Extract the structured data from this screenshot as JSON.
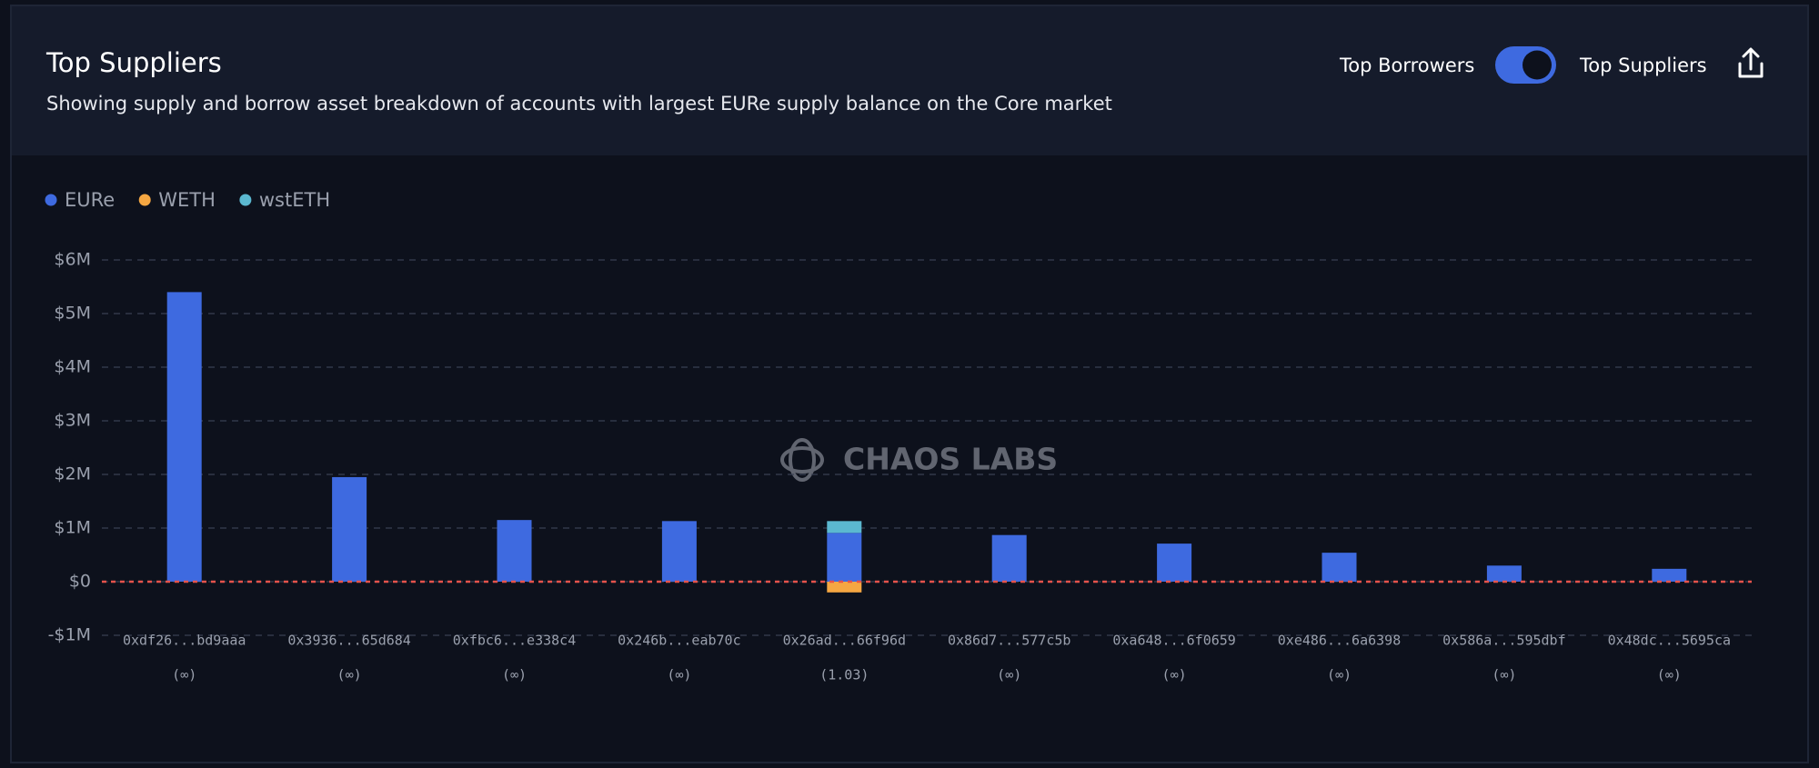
{
  "header": {
    "toggle_left": "Top Borrowers",
    "toggle_right": "Top Suppliers"
  },
  "watermark": "CHAOS LABS",
  "chart_data": {
    "type": "bar",
    "title": "Top Suppliers",
    "subtitle": "Showing supply and borrow asset breakdown of accounts with largest EURe supply balance on the Core market",
    "stacked": true,
    "categories": [
      "0xdf26...bd9aaa",
      "0x3936...65d684",
      "0xfbc6...e338c4",
      "0x246b...eab70c",
      "0x26ad...66f96d",
      "0x86d7...577c5b",
      "0xa648...6f0659",
      "0xe486...6a6398",
      "0x586a...595dbf",
      "0x48dc...5695ca"
    ],
    "category_sublabels": [
      "(∞)",
      "(∞)",
      "(∞)",
      "(∞)",
      "(1.03)",
      "(∞)",
      "(∞)",
      "(∞)",
      "(∞)",
      "(∞)"
    ],
    "series": [
      {
        "name": "EURe",
        "color": "#3e6ae0",
        "values": [
          5400000,
          1950000,
          1150000,
          1130000,
          910000,
          870000,
          710000,
          540000,
          300000,
          240000
        ]
      },
      {
        "name": "WETH",
        "color": "#f5a742",
        "values": [
          0,
          0,
          0,
          0,
          -200000,
          0,
          0,
          0,
          0,
          0
        ]
      },
      {
        "name": "wstETH",
        "color": "#5bb8d0",
        "values": [
          0,
          0,
          0,
          0,
          220000,
          0,
          0,
          0,
          0,
          0
        ]
      }
    ],
    "ylim": [
      -1000000,
      6000000
    ],
    "yticks": [
      {
        "value": -1000000,
        "label": "-$1M"
      },
      {
        "value": 0,
        "label": "$0"
      },
      {
        "value": 1000000,
        "label": "$1M"
      },
      {
        "value": 2000000,
        "label": "$2M"
      },
      {
        "value": 3000000,
        "label": "$3M"
      },
      {
        "value": 4000000,
        "label": "$4M"
      },
      {
        "value": 5000000,
        "label": "$5M"
      },
      {
        "value": 6000000,
        "label": "$6M"
      }
    ],
    "grid": true
  }
}
